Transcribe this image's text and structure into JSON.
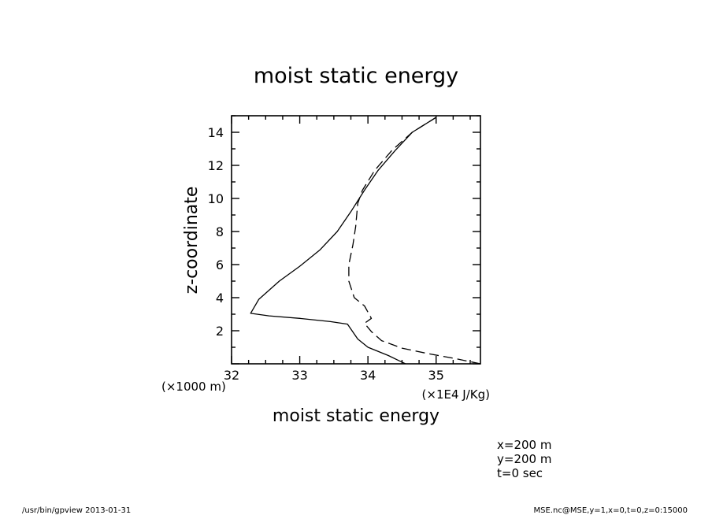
{
  "chart_data": {
    "type": "line",
    "title": "moist static energy",
    "xlabel": "moist static energy",
    "ylabel": "z-coordinate",
    "x_unit": "(×1E4 J/Kg)",
    "y_unit": "(×1000 m)",
    "xlim": [
      32,
      35.65
    ],
    "ylim": [
      0,
      15
    ],
    "x_ticks": [
      "32",
      "33",
      "34",
      "35"
    ],
    "y_ticks": [
      "2",
      "4",
      "6",
      "8",
      "10",
      "12",
      "14"
    ],
    "grid": false,
    "series": [
      {
        "style": "solid",
        "x": [
          34.55,
          34.3,
          34.0,
          33.85,
          33.7,
          33.45,
          33.0,
          32.55,
          32.28,
          32.4,
          32.7,
          33.0,
          33.3,
          33.55,
          33.75,
          33.95,
          34.15,
          34.4,
          34.65,
          35.0
        ],
        "y": [
          0.0,
          0.5,
          1.0,
          1.5,
          2.4,
          2.55,
          2.75,
          2.9,
          3.05,
          3.9,
          5.0,
          5.9,
          6.9,
          8.0,
          9.2,
          10.5,
          11.7,
          12.9,
          14.0,
          14.9
        ]
      },
      {
        "style": "dashed",
        "x": [
          35.65,
          35.3,
          34.9,
          34.5,
          34.2,
          34.05,
          33.95,
          34.05,
          33.95,
          33.8,
          33.72,
          33.72,
          33.78,
          33.82,
          33.85,
          33.92,
          34.1,
          34.35,
          34.65,
          35.0
        ],
        "y": [
          0.0,
          0.3,
          0.6,
          0.95,
          1.4,
          1.95,
          2.45,
          2.75,
          3.5,
          4.0,
          5.0,
          6.0,
          7.2,
          8.3,
          9.7,
          10.5,
          11.7,
          12.9,
          14.0,
          14.9
        ]
      }
    ]
  },
  "info_lines": [
    "x=200 m",
    "y=200 m",
    "t=0 sec"
  ],
  "footer": {
    "left": "/usr/bin/gpview  2013-01-31",
    "right": "MSE.nc@MSE,y=1,x=0,t=0,z=0:15000"
  }
}
